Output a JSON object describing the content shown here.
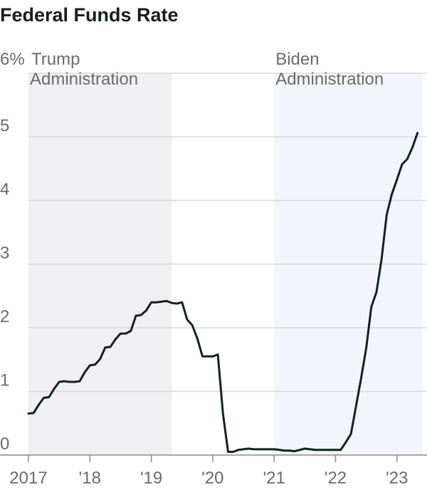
{
  "chart_data": {
    "type": "line",
    "title": "Federal Funds Rate",
    "y_unit_suffix": "%",
    "ylim": [
      0,
      6
    ],
    "yticks": [
      {
        "value": 0,
        "label": "0"
      },
      {
        "value": 1,
        "label": "1"
      },
      {
        "value": 2,
        "label": "2"
      },
      {
        "value": 3,
        "label": "3"
      },
      {
        "value": 4,
        "label": "4"
      },
      {
        "value": 5,
        "label": "5"
      },
      {
        "value": 6,
        "label": "6%"
      }
    ],
    "xlim": [
      "2017-01",
      "2023-06"
    ],
    "xticks": [
      {
        "date": "2017-01",
        "label": "2017"
      },
      {
        "date": "2018-01",
        "label": "'18"
      },
      {
        "date": "2019-01",
        "label": "'19"
      },
      {
        "date": "2020-01",
        "label": "'20"
      },
      {
        "date": "2021-01",
        "label": "'21"
      },
      {
        "date": "2022-01",
        "label": "'22"
      },
      {
        "date": "2023-01",
        "label": "'23"
      }
    ],
    "grid": true,
    "shaded_periods": [
      {
        "start": "2017-01",
        "end": "2019-05",
        "label_line1": "Trump",
        "label_line2": "Administration",
        "color": "#f0f0f2"
      },
      {
        "start": "2021-01",
        "end": "2023-06",
        "label_line1": "Biden",
        "label_line2": "Administration",
        "color": "#f2f6fc"
      }
    ],
    "line_color": "#10231f",
    "series": [
      {
        "points": [
          [
            "2017-01",
            0.65
          ],
          [
            "2017-02",
            0.66
          ],
          [
            "2017-03",
            0.79
          ],
          [
            "2017-04",
            0.9
          ],
          [
            "2017-05",
            0.91
          ],
          [
            "2017-06",
            1.04
          ],
          [
            "2017-07",
            1.15
          ],
          [
            "2017-08",
            1.16
          ],
          [
            "2017-09",
            1.15
          ],
          [
            "2017-10",
            1.15
          ],
          [
            "2017-11",
            1.16
          ],
          [
            "2017-12",
            1.3
          ],
          [
            "2018-01",
            1.41
          ],
          [
            "2018-02",
            1.42
          ],
          [
            "2018-03",
            1.51
          ],
          [
            "2018-04",
            1.69
          ],
          [
            "2018-05",
            1.7
          ],
          [
            "2018-06",
            1.82
          ],
          [
            "2018-07",
            1.91
          ],
          [
            "2018-08",
            1.91
          ],
          [
            "2018-09",
            1.95
          ],
          [
            "2018-10",
            2.19
          ],
          [
            "2018-11",
            2.2
          ],
          [
            "2018-12",
            2.27
          ],
          [
            "2019-01",
            2.4
          ],
          [
            "2019-02",
            2.4
          ],
          [
            "2019-03",
            2.41
          ],
          [
            "2019-04",
            2.42
          ],
          [
            "2019-05",
            2.39
          ],
          [
            "2019-06",
            2.38
          ],
          [
            "2019-07",
            2.4
          ],
          [
            "2019-08",
            2.13
          ],
          [
            "2019-09",
            2.04
          ],
          [
            "2019-10",
            1.83
          ],
          [
            "2019-11",
            1.55
          ],
          [
            "2019-12",
            1.55
          ],
          [
            "2020-01",
            1.55
          ],
          [
            "2020-02",
            1.58
          ],
          [
            "2020-03",
            0.65
          ],
          [
            "2020-04",
            0.05
          ],
          [
            "2020-05",
            0.05
          ],
          [
            "2020-06",
            0.08
          ],
          [
            "2020-07",
            0.09
          ],
          [
            "2020-08",
            0.1
          ],
          [
            "2020-09",
            0.09
          ],
          [
            "2020-10",
            0.09
          ],
          [
            "2020-11",
            0.09
          ],
          [
            "2020-12",
            0.09
          ],
          [
            "2021-01",
            0.09
          ],
          [
            "2021-02",
            0.08
          ],
          [
            "2021-03",
            0.07
          ],
          [
            "2021-04",
            0.07
          ],
          [
            "2021-05",
            0.06
          ],
          [
            "2021-06",
            0.08
          ],
          [
            "2021-07",
            0.1
          ],
          [
            "2021-08",
            0.09
          ],
          [
            "2021-09",
            0.08
          ],
          [
            "2021-10",
            0.08
          ],
          [
            "2021-11",
            0.08
          ],
          [
            "2021-12",
            0.08
          ],
          [
            "2022-01",
            0.08
          ],
          [
            "2022-02",
            0.08
          ],
          [
            "2022-03",
            0.2
          ],
          [
            "2022-04",
            0.33
          ],
          [
            "2022-05",
            0.77
          ],
          [
            "2022-06",
            1.21
          ],
          [
            "2022-07",
            1.68
          ],
          [
            "2022-08",
            2.33
          ],
          [
            "2022-09",
            2.56
          ],
          [
            "2022-10",
            3.08
          ],
          [
            "2022-11",
            3.78
          ],
          [
            "2022-12",
            4.1
          ],
          [
            "2023-01",
            4.33
          ],
          [
            "2023-02",
            4.57
          ],
          [
            "2023-03",
            4.65
          ],
          [
            "2023-04",
            4.83
          ],
          [
            "2023-05",
            5.06
          ]
        ]
      }
    ]
  }
}
